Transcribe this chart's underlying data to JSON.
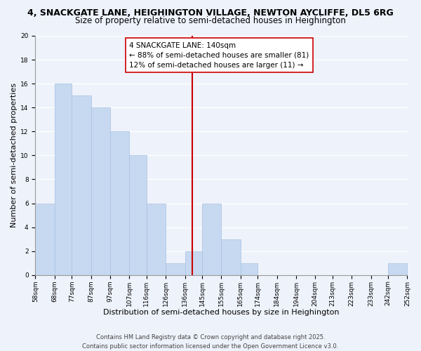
{
  "title_line1": "4, SNACKGATE LANE, HEIGHINGTON VILLAGE, NEWTON AYCLIFFE, DL5 6RG",
  "title_line2": "Size of property relative to semi-detached houses in Heighington",
  "xlabel": "Distribution of semi-detached houses by size in Heighington",
  "ylabel": "Number of semi-detached properties",
  "bin_labels": [
    "58sqm",
    "68sqm",
    "77sqm",
    "87sqm",
    "97sqm",
    "107sqm",
    "116sqm",
    "126sqm",
    "136sqm",
    "145sqm",
    "155sqm",
    "165sqm",
    "174sqm",
    "184sqm",
    "194sqm",
    "204sqm",
    "213sqm",
    "223sqm",
    "233sqm",
    "242sqm",
    "252sqm"
  ],
  "bin_edges": [
    58,
    68,
    77,
    87,
    97,
    107,
    116,
    126,
    136,
    145,
    155,
    165,
    174,
    184,
    194,
    204,
    213,
    223,
    233,
    242,
    252
  ],
  "bar_heights": [
    6,
    16,
    15,
    14,
    12,
    10,
    6,
    1,
    2,
    6,
    3,
    1,
    0,
    0,
    0,
    0,
    0,
    0,
    0,
    1
  ],
  "bar_color": "#c6d9f1",
  "bar_edge_color": "#a8c0df",
  "vline_x": 140,
  "vline_color": "#cc0000",
  "annotation_title": "4 SNACKGATE LANE: 140sqm",
  "annotation_line1": "← 88% of semi-detached houses are smaller (81)",
  "annotation_line2": "12% of semi-detached houses are larger (11) →",
  "annotation_box_color": "#ffffff",
  "annotation_box_edge": "#cc0000",
  "ylim": [
    0,
    20
  ],
  "yticks": [
    0,
    2,
    4,
    6,
    8,
    10,
    12,
    14,
    16,
    18,
    20
  ],
  "background_color": "#eef2fb",
  "grid_color": "#ffffff",
  "footer_line1": "Contains HM Land Registry data © Crown copyright and database right 2025.",
  "footer_line2": "Contains public sector information licensed under the Open Government Licence v3.0.",
  "title_fontsize": 9,
  "subtitle_fontsize": 8.5,
  "axis_label_fontsize": 8,
  "tick_fontsize": 6.5,
  "annotation_fontsize": 7.5,
  "footer_fontsize": 6
}
